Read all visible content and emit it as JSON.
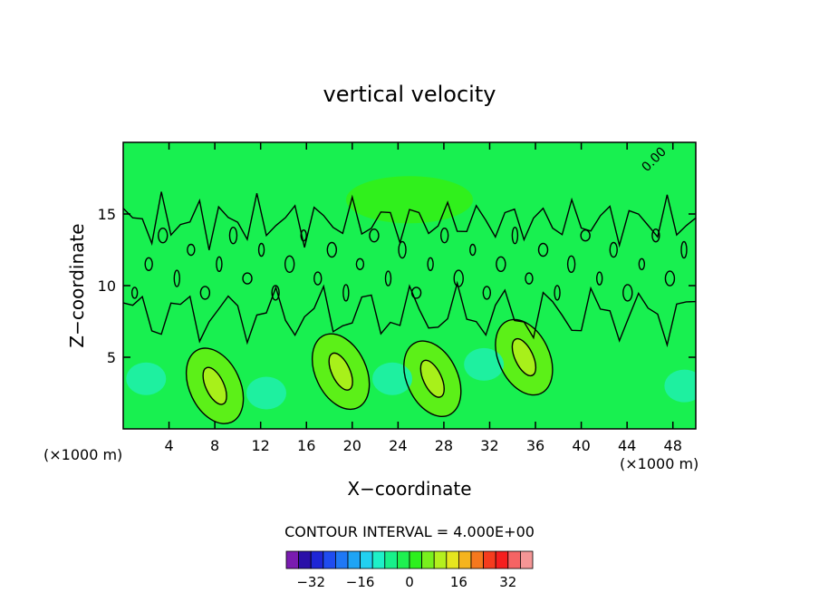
{
  "chart_data": {
    "type": "heatmap",
    "title": "vertical velocity",
    "xlabel": "X−coordinate",
    "ylabel": "Z−coordinate",
    "xunit_left": "(×1000 m)",
    "xunit_right": "(×1000 m)",
    "xlim": [
      0,
      50
    ],
    "ylim": [
      0,
      20
    ],
    "xticks": [
      "4",
      "8",
      "12",
      "16",
      "20",
      "24",
      "28",
      "32",
      "36",
      "40",
      "44",
      "48"
    ],
    "yticks": [
      "5",
      "10",
      "15"
    ],
    "contour_interval_label": "CONTOUR INTERVAL = 4.000E+00",
    "contour_label": "0.00",
    "colorbar": {
      "ticks": [
        "−32",
        "−16",
        "0",
        "16",
        "32"
      ],
      "colors": [
        "#7a1cb0",
        "#2a0fa8",
        "#1e26d6",
        "#1f4cf0",
        "#1f78f5",
        "#1ea4f5",
        "#22d0f0",
        "#1ef0c8",
        "#18f08a",
        "#1ef050",
        "#2df01e",
        "#78f01e",
        "#b4f01e",
        "#e6e61e",
        "#f5b41e",
        "#f5781e",
        "#f53c1e",
        "#f51e1e",
        "#f56464",
        "#f59696"
      ]
    },
    "regions": [
      {
        "level": 4,
        "x": 8,
        "z": 3
      },
      {
        "level": 4,
        "x": 19,
        "z": 4
      },
      {
        "level": 4,
        "x": 27,
        "z": 3.5
      },
      {
        "level": 4,
        "x": 35,
        "z": 5
      },
      {
        "level": -4,
        "x": 2,
        "z": 3.5
      },
      {
        "level": -4,
        "x": 12.5,
        "z": 2.5
      },
      {
        "level": -4,
        "x": 23.5,
        "z": 3.5
      },
      {
        "level": -4,
        "x": 31.5,
        "z": 4.5
      },
      {
        "level": -4,
        "x": 49,
        "z": 3
      },
      {
        "level": 0,
        "x": 25,
        "z": 16
      }
    ]
  }
}
